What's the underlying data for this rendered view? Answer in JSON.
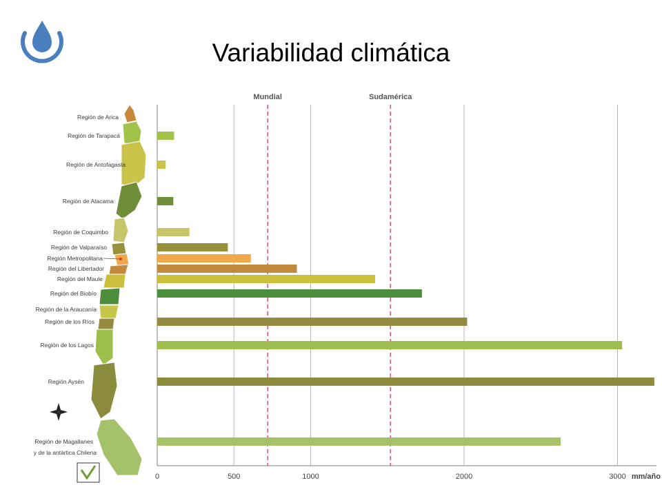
{
  "title": "Variabilidad climática",
  "logo_icon": "water-drop-icon",
  "map_icons": [
    "chile-map-icon",
    "compass-rose-icon",
    "checkmark-badge-icon"
  ],
  "chart_data": {
    "type": "bar",
    "orientation": "horizontal",
    "title": "",
    "xlabel": "",
    "unit_label": "mm/año",
    "xlim": [
      0,
      3250
    ],
    "ticks": [
      0,
      500,
      1000,
      2000,
      3000
    ],
    "tick_labels": [
      "0",
      "500",
      "1000",
      "2000",
      "3000"
    ],
    "grid": true,
    "reference_lines": [
      {
        "label": "Mundial",
        "value": 720,
        "color": "#d9536f"
      },
      {
        "label": "Sudamérica",
        "value": 1520,
        "color": "#d9536f"
      }
    ],
    "categories": [
      "Región de Arica",
      "Región de Tarapacá",
      "Región de Antofagasta",
      "Región de Atacama",
      "Región de Coquimbo",
      "Región de Valparaíso",
      "Región Metropolitana",
      "Región del Libertador",
      "Región del Maule",
      "Región del Biobío",
      "Región de la Araucanía",
      "Región de los Ríos",
      "Región de los Lagos",
      "Región Aysén",
      "Región de Magallanes",
      "y de la antártica Chilena"
    ],
    "values": [
      null,
      110,
      55,
      105,
      210,
      460,
      610,
      910,
      1420,
      1725,
      null,
      2020,
      3030,
      3240,
      2630,
      null
    ],
    "colors": [
      "#c8883a",
      "#a3c24a",
      "#cbc24a",
      "#6f8e3a",
      "#c8c46a",
      "#98913c",
      "#f0a84a",
      "#c28a3c",
      "#cbbf3c",
      "#4d8e3c",
      "#c5c64a",
      "#938c40",
      "#9dbe4a",
      "#8c8a3c",
      "#a5c26a",
      "#a5c26a"
    ]
  }
}
